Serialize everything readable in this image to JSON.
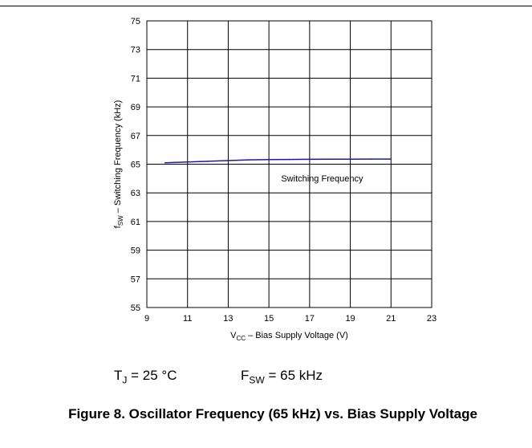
{
  "chart_data": {
    "type": "line",
    "xlabel": {
      "main": "V",
      "sub": "CC",
      "rest": " – Bias Supply Voltage (V)"
    },
    "ylabel": {
      "main": "f",
      "sub": "SW",
      "rest": " – Switching Frequency (kHz)"
    },
    "xlim": [
      9,
      23
    ],
    "ylim": [
      55,
      75
    ],
    "xticks": [
      9,
      11,
      13,
      15,
      17,
      19,
      21,
      23
    ],
    "yticks": [
      55,
      57,
      59,
      61,
      63,
      65,
      67,
      69,
      71,
      73,
      75
    ],
    "grid": true,
    "series": [
      {
        "name": "Switching Frequency",
        "color": "#1a1aa6",
        "x": [
          9.9,
          11,
          12,
          13,
          14,
          15,
          16,
          17,
          18,
          19,
          20,
          21
        ],
        "y": [
          65.1,
          65.15,
          65.2,
          65.25,
          65.3,
          65.32,
          65.33,
          65.34,
          65.35,
          65.35,
          65.36,
          65.36
        ]
      }
    ],
    "annotation": "Switching Frequency"
  },
  "conditions": {
    "tj_main": "T",
    "tj_sub": "J",
    "tj_rest": " = 25 °C",
    "fsw_main": "F",
    "fsw_sub": "SW",
    "fsw_rest": " = 65 kHz"
  },
  "caption": "Figure 8. Oscillator Frequency (65 kHz) vs. Bias Supply Voltage"
}
